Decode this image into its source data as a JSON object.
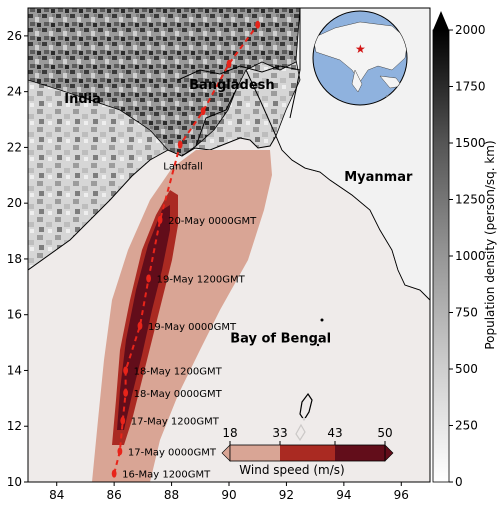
{
  "map": {
    "xticks": [
      84,
      86,
      88,
      90,
      92,
      94,
      96
    ],
    "yticks": [
      10,
      12,
      14,
      16,
      18,
      20,
      22,
      24,
      26
    ],
    "xlim": [
      83,
      97
    ],
    "ylim": [
      10,
      27
    ],
    "places": [
      {
        "name": "India",
        "lon": 84.9,
        "lat": 23.6,
        "kind": "country"
      },
      {
        "name": "Bangladesh",
        "lon": 90.1,
        "lat": 24.1,
        "kind": "country"
      },
      {
        "name": "Myanmar",
        "lon": 95.2,
        "lat": 20.8,
        "kind": "country"
      },
      {
        "name": "Bay of Bengal",
        "lon": 91.8,
        "lat": 15.0,
        "kind": "sea"
      },
      {
        "name": "Landfall",
        "lon": 88.4,
        "lat": 21.2,
        "kind": "small"
      }
    ],
    "track": [
      {
        "label": "16-May 1200GMT",
        "lon": 86.0,
        "lat": 10.3
      },
      {
        "label": "17-May 0000GMT",
        "lon": 86.2,
        "lat": 11.1
      },
      {
        "label": "17-May 1200GMT",
        "lon": 86.3,
        "lat": 12.2
      },
      {
        "label": "18-May 0000GMT",
        "lon": 86.4,
        "lat": 13.2
      },
      {
        "label": "18-May 1200GMT",
        "lon": 86.4,
        "lat": 14.0
      },
      {
        "label": "19-May 0000GMT",
        "lon": 86.9,
        "lat": 15.6
      },
      {
        "label": "19-May 1200GMT",
        "lon": 87.2,
        "lat": 17.3
      },
      {
        "label": "20-May 0000GMT",
        "lon": 87.6,
        "lat": 19.4
      },
      {
        "label": "",
        "lon": 88.3,
        "lat": 22.1
      },
      {
        "label": "",
        "lon": 89.1,
        "lat": 23.3
      },
      {
        "label": "",
        "lon": 90.0,
        "lat": 25.0
      },
      {
        "label": "",
        "lon": 91.0,
        "lat": 26.4
      }
    ],
    "colors": {
      "land": "#e6e6e6",
      "sea": "#efebea",
      "wind_18": "#d9a595",
      "wind_33": "#aa2a22",
      "wind_43": "#620d1a",
      "track": "#e8241a"
    }
  },
  "popbar": {
    "label": "Population density (person/sq. km)",
    "ticks": [
      0,
      250,
      500,
      750,
      1000,
      1250,
      1500,
      1750,
      2000
    ],
    "min": 0,
    "max": 2000
  },
  "windbar": {
    "label": "Wind speed (m/s)",
    "ticks": [
      "18",
      "33",
      "43",
      "50"
    ],
    "colors": [
      "#d9a595",
      "#aa2a22",
      "#620d1a"
    ]
  }
}
